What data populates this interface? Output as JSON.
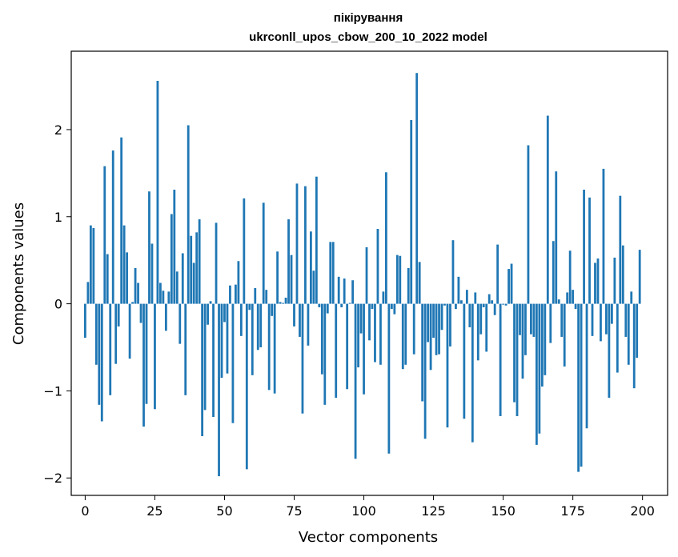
{
  "chart_data": {
    "type": "bar",
    "title": "пікірування",
    "subtitle": "ukrconll_upos_cbow_200_10_2022 model",
    "xlabel": "Vector components",
    "ylabel": "Components values",
    "xlim": [
      -5,
      209
    ],
    "ylim": [
      -2.2,
      2.9
    ],
    "xticks": [
      0,
      25,
      50,
      75,
      100,
      125,
      150,
      175,
      200
    ],
    "yticks": [
      -2,
      -1,
      0,
      1,
      2
    ],
    "xtick_labels": [
      "0",
      "25",
      "50",
      "75",
      "100",
      "125",
      "150",
      "175",
      "200"
    ],
    "ytick_labels": [
      "−2",
      "−1",
      "0",
      "1",
      "2"
    ],
    "bar_color": "#1f77b4",
    "grid": false,
    "values": [
      -0.39,
      0.25,
      0.9,
      0.87,
      -0.7,
      -1.16,
      -1.35,
      1.58,
      0.57,
      -1.05,
      1.76,
      -0.69,
      -0.26,
      1.91,
      0.9,
      0.59,
      -0.63,
      0.02,
      0.41,
      0.24,
      -0.22,
      -1.41,
      -1.15,
      1.29,
      0.69,
      -1.21,
      2.56,
      0.24,
      0.15,
      -0.31,
      0.14,
      1.03,
      1.31,
      0.37,
      -0.46,
      0.58,
      -1.05,
      2.05,
      0.78,
      0.47,
      0.82,
      0.97,
      -1.52,
      -1.22,
      -0.24,
      0.03,
      -1.3,
      0.93,
      -1.98,
      -0.85,
      -0.21,
      -0.8,
      0.21,
      -1.37,
      0.22,
      0.49,
      -0.37,
      1.21,
      -1.9,
      -0.07,
      -0.82,
      0.18,
      -0.53,
      -0.5,
      1.16,
      0.16,
      -0.99,
      -0.14,
      -1.03,
      0.6,
      0.02,
      0.01,
      0.07,
      0.97,
      0.56,
      -0.26,
      1.38,
      -0.38,
      -1.26,
      1.35,
      -0.48,
      0.83,
      0.38,
      1.46,
      -0.04,
      -0.81,
      -1.16,
      -0.11,
      0.71,
      0.71,
      -1.08,
      0.31,
      -0.04,
      0.29,
      -0.98,
      0.01,
      0.27,
      -1.78,
      -0.73,
      -0.34,
      -1.04,
      0.65,
      -0.42,
      -0.06,
      -0.67,
      0.86,
      -0.7,
      0.14,
      1.51,
      -1.72,
      -0.06,
      -0.12,
      0.56,
      0.55,
      -0.75,
      -0.7,
      0.41,
      2.11,
      -0.58,
      2.65,
      0.48,
      -1.12,
      -1.55,
      -0.44,
      -0.76,
      -0.39,
      -0.59,
      -0.58,
      -0.3,
      -0.02,
      -1.42,
      -0.49,
      0.73,
      -0.06,
      0.31,
      0.04,
      -1.32,
      0.16,
      -0.27,
      -1.59,
      0.13,
      -0.65,
      -0.35,
      -0.04,
      -0.55,
      0.11,
      0.04,
      -0.13,
      0.68,
      -1.29,
      -0.01,
      -0.02,
      0.4,
      0.46,
      -1.13,
      -1.29,
      -0.36,
      -0.86,
      -0.59,
      1.82,
      -0.35,
      -0.38,
      -1.62,
      -1.49,
      -0.95,
      -0.82,
      2.16,
      -0.45,
      0.72,
      1.52,
      0.05,
      -0.38,
      -0.72,
      0.13,
      0.61,
      0.16,
      -0.06,
      -1.93,
      -1.87,
      1.31,
      -1.43,
      1.22,
      -0.37,
      0.47,
      0.52,
      -0.43,
      1.55,
      -0.35,
      -1.08,
      -0.23,
      0.53,
      -0.79,
      1.24,
      0.67,
      -0.38,
      -0.7,
      0.14,
      -0.97,
      -0.62,
      0.62
    ]
  }
}
